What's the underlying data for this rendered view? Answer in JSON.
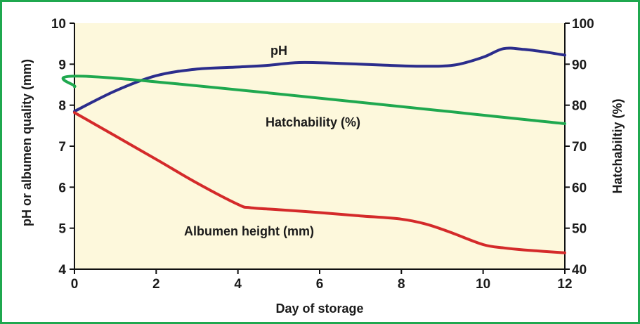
{
  "chart_data": {
    "type": "line",
    "xlabel": "Day of storage",
    "ylabel_left": "pH or albumen quality (mm)",
    "ylabel_right": "Hatchabiltiy (%)",
    "xlim": [
      0,
      12
    ],
    "ylim_left": [
      4,
      10
    ],
    "ylim_right": [
      40,
      100
    ],
    "x_ticks": [
      "0",
      "2",
      "4",
      "6",
      "8",
      "10",
      "12"
    ],
    "y_left_ticks": [
      "4",
      "5",
      "6",
      "7",
      "8",
      "9",
      "10"
    ],
    "y_right_ticks": [
      "40",
      "50",
      "60",
      "70",
      "80",
      "90",
      "100"
    ],
    "grid": false,
    "background_color": "#fdf8dc",
    "frame_color": "#1fa84f",
    "series": [
      {
        "name": "pH",
        "axis": "left",
        "color": "#2b2d8c",
        "x": [
          0,
          1,
          2,
          3,
          4,
          4.7,
          5.5,
          6.5,
          7.5,
          8.5,
          9.3,
          10,
          10.5,
          11,
          11.5,
          12
        ],
        "y": [
          7.85,
          8.35,
          8.72,
          8.88,
          8.93,
          8.97,
          9.04,
          9.02,
          8.98,
          8.95,
          8.98,
          9.17,
          9.38,
          9.36,
          9.3,
          9.22
        ]
      },
      {
        "name": "Hatchability (%)",
        "axis": "right",
        "color": "#1fa84f",
        "x": [
          0,
          0.85,
          12
        ],
        "y": [
          84.5,
          86.7,
          75.5
        ]
      },
      {
        "name": "Albumen height (mm)",
        "axis": "left",
        "color": "#d42a2a",
        "x": [
          0,
          1,
          2,
          3,
          4,
          4.3,
          5,
          6,
          7,
          8,
          8.6,
          9.2,
          10,
          10.5,
          11,
          12
        ],
        "y": [
          7.82,
          7.25,
          6.68,
          6.1,
          5.58,
          5.5,
          5.45,
          5.38,
          5.3,
          5.22,
          5.1,
          4.9,
          4.6,
          4.52,
          4.47,
          4.4
        ]
      }
    ],
    "annotations": {
      "ph": "pH",
      "hatchability": "Hatchability (%)",
      "albumen": "Albumen height (mm)"
    }
  }
}
